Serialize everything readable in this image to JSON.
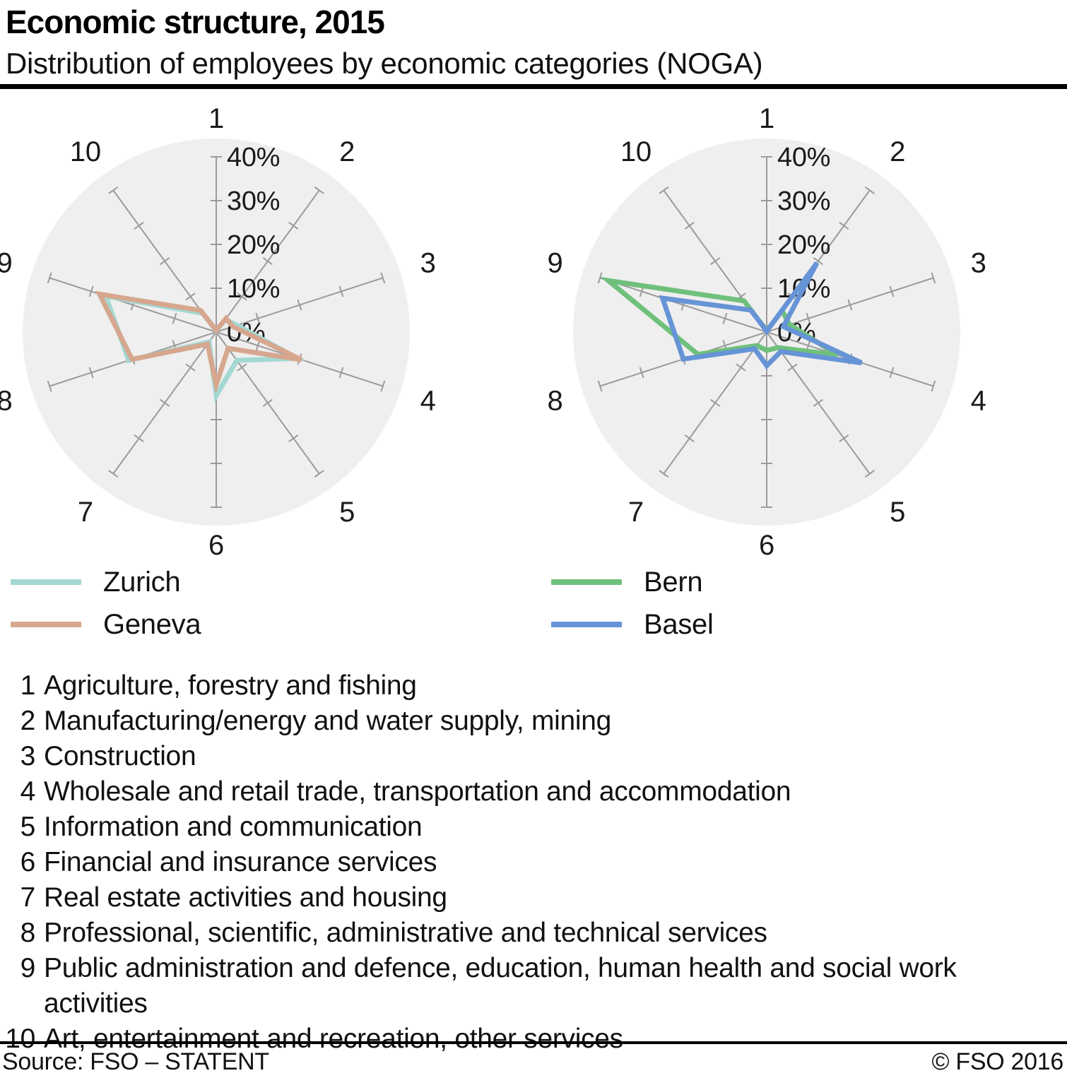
{
  "header": {
    "title": "Economic structure, 2015",
    "subtitle": "Distribution of employees by economic categories (NOGA)"
  },
  "chart_data": {
    "type": "radar",
    "axis_labels": [
      "1",
      "2",
      "3",
      "4",
      "5",
      "6",
      "7",
      "8",
      "9",
      "10"
    ],
    "scale": {
      "min": 0,
      "max": 40,
      "step": 10,
      "tick_labels": [
        "0%",
        "10%",
        "20%",
        "30%",
        "40%"
      ],
      "unit": "%"
    },
    "grid": "radial-10-spokes",
    "legend_position": "below-left",
    "charts": [
      {
        "name": "left",
        "series": [
          {
            "name": "Zurich",
            "color": "#a3d8d3",
            "values": [
              0.3,
              3.5,
              5.0,
              19.5,
              8.0,
              14.5,
              2.8,
              21.0,
              26.5,
              5.3
            ]
          },
          {
            "name": "Geneva",
            "color": "#d6a78e",
            "values": [
              0.4,
              3.8,
              4.0,
              20.5,
              4.6,
              12.0,
              3.4,
              20.2,
              28.0,
              6.1
            ]
          }
        ]
      },
      {
        "name": "right",
        "series": [
          {
            "name": "Bern",
            "color": "#6fc07b",
            "values": [
              0.3,
              6.0,
              5.5,
              17.0,
              4.4,
              4.2,
              3.8,
              16.5,
              38.0,
              8.8
            ]
          },
          {
            "name": "Basel",
            "color": "#6694d6",
            "values": [
              0.2,
              19.5,
              4.0,
              22.8,
              5.5,
              7.7,
              4.7,
              20.0,
              25.0,
              6.2
            ]
          }
        ]
      }
    ],
    "style": {
      "circle_fill": "#efefef",
      "axis_color": "#9b9b9b",
      "label_color": "#1a1a1a"
    }
  },
  "categories": [
    {
      "num": "1",
      "label": "Agriculture, forestry and fishing"
    },
    {
      "num": "2",
      "label": "Manufacturing/energy and water supply, mining"
    },
    {
      "num": "3",
      "label": "Construction"
    },
    {
      "num": "4",
      "label": "Wholesale and retail trade, transportation and accommodation"
    },
    {
      "num": "5",
      "label": "Information and communication"
    },
    {
      "num": "6",
      "label": "Financial and insurance services"
    },
    {
      "num": "7",
      "label": "Real estate activities and housing"
    },
    {
      "num": "8",
      "label": "Professional, scientific, administrative and technical services"
    },
    {
      "num": "9",
      "label": "Public administration and defence, education, human health and social work activities"
    },
    {
      "num": "10",
      "label": "Art, entertainment and recreation, other services"
    }
  ],
  "footer": {
    "source": "Source: FSO – STATENT",
    "copyright": "© FSO 2016"
  }
}
